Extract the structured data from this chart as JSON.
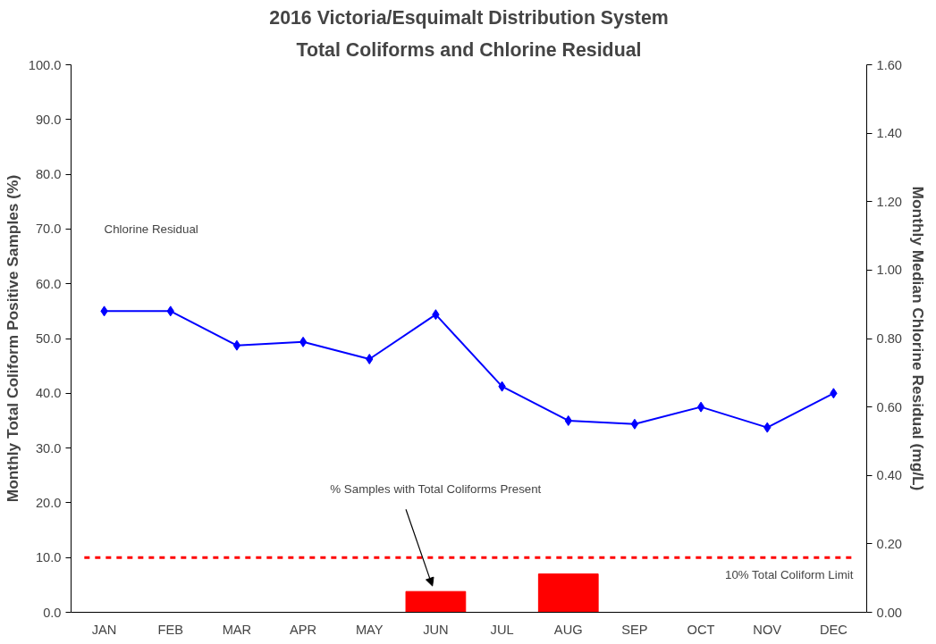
{
  "chart_data": {
    "type": "bar",
    "title": "2016 Victoria/Esquimalt Distribution System",
    "subtitle": "Total Coliforms and Chlorine Residual",
    "ylabel": "Monthly Total Coliform Positive Samples (%)",
    "y2label": "Monthly Median Chlorine Residual (mg/L)",
    "categories": [
      "JAN",
      "FEB",
      "MAR",
      "APR",
      "MAY",
      "JUN",
      "JUL",
      "AUG",
      "SEP",
      "OCT",
      "NOV",
      "DEC"
    ],
    "series": [
      {
        "color": "#ff0000",
        "values": [
          0,
          0,
          0,
          0,
          0,
          3.8,
          0,
          7.0,
          0,
          0,
          0,
          0
        ]
      },
      {
        "type": "line",
        "axis": "y2",
        "color": "#0000ff",
        "marker": "diamond",
        "line_style": "solid",
        "values": [
          0.88,
          0.88,
          0.78,
          0.79,
          0.74,
          0.87,
          0.66,
          0.56,
          0.55,
          0.6,
          0.54,
          0.64
        ]
      }
    ],
    "ylim": [
      0,
      100
    ],
    "yticks": [
      {
        "value": 0,
        "label": "0.0"
      },
      {
        "value": 10,
        "label": "10.0"
      },
      {
        "value": 20,
        "label": "20.0"
      },
      {
        "value": 30,
        "label": "30.0"
      },
      {
        "value": 40,
        "label": "40.0"
      },
      {
        "value": 50,
        "label": "50.0"
      },
      {
        "value": 60,
        "label": "60.0"
      },
      {
        "value": 70,
        "label": "70.0"
      },
      {
        "value": 80,
        "label": "80.0"
      },
      {
        "value": 90,
        "label": "90.0"
      },
      {
        "value": 100,
        "label": "100.0"
      }
    ],
    "y2lim": [
      0,
      1.6
    ],
    "y2ticks": [
      {
        "value": 0,
        "label": "0.00"
      },
      {
        "value": 0.2,
        "label": "0.20"
      },
      {
        "value": 0.4,
        "label": "0.40"
      },
      {
        "value": 0.6,
        "label": "0.60"
      },
      {
        "value": 0.8,
        "label": "0.80"
      },
      {
        "value": 1.0,
        "label": "1.00"
      },
      {
        "value": 1.2,
        "label": "1.20"
      },
      {
        "value": 1.4,
        "label": "1.40"
      },
      {
        "value": 1.6,
        "label": "1.60"
      }
    ],
    "ref_lines": [
      {
        "axis": "y",
        "value": 10,
        "label": "10% Total Coliform Limit",
        "color": "#ff0000",
        "line_style": "dashed"
      }
    ],
    "annotations": [
      "Chlorine Residual",
      {
        "text": "% Samples with Total Coliforms Present",
        "x": "JUN",
        "y": 3.8
      }
    ],
    "grid": false
  }
}
